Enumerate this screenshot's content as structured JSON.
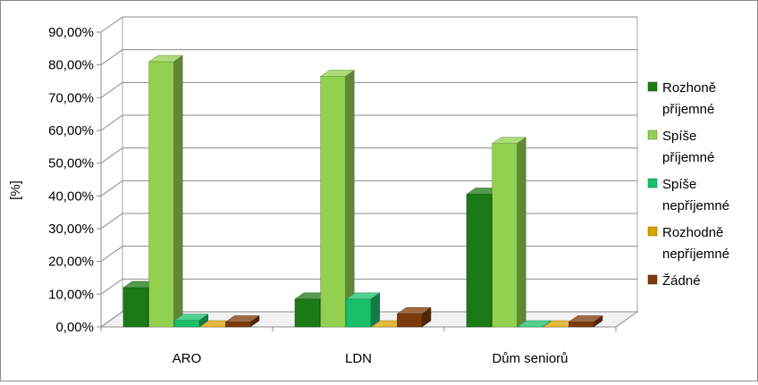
{
  "chart_data": {
    "type": "bar",
    "title": "",
    "xlabel": "",
    "ylabel": "[%]",
    "ylim": [
      0,
      90
    ],
    "y_tick_labels": [
      "0,00%",
      "10,00%",
      "20,00%",
      "30,00%",
      "40,00%",
      "50,00%",
      "60,00%",
      "70,00%",
      "80,00%",
      "90,00%"
    ],
    "categories": [
      "ARO",
      "LDN",
      "Dům seniorů"
    ],
    "grid": true,
    "legend_position": "right",
    "series": [
      {
        "name": "Rozhoně příjemné",
        "name_lines": [
          "Rozhoně",
          "příjemné"
        ],
        "values": [
          12,
          8.5,
          40.5
        ],
        "color": "#1b7a16"
      },
      {
        "name": "Spíše příjemné",
        "name_lines": [
          "Spíše",
          "příjemné"
        ],
        "values": [
          81,
          76.5,
          56
        ],
        "color": "#92d050"
      },
      {
        "name": "Spíše nepříjemné",
        "name_lines": [
          "Spíše",
          "nepříjemné"
        ],
        "values": [
          2,
          8.5,
          0
        ],
        "color": "#1abf6a"
      },
      {
        "name": "Rozhodně nepříjemné",
        "name_lines": [
          "Rozhodně",
          "nepříjemné"
        ],
        "values": [
          0,
          0,
          0
        ],
        "color": "#d9a200"
      },
      {
        "name": "Žádné",
        "name_lines": [
          "Žádné"
        ],
        "values": [
          1.5,
          4,
          1.5
        ],
        "color": "#7a3a0a"
      }
    ]
  }
}
